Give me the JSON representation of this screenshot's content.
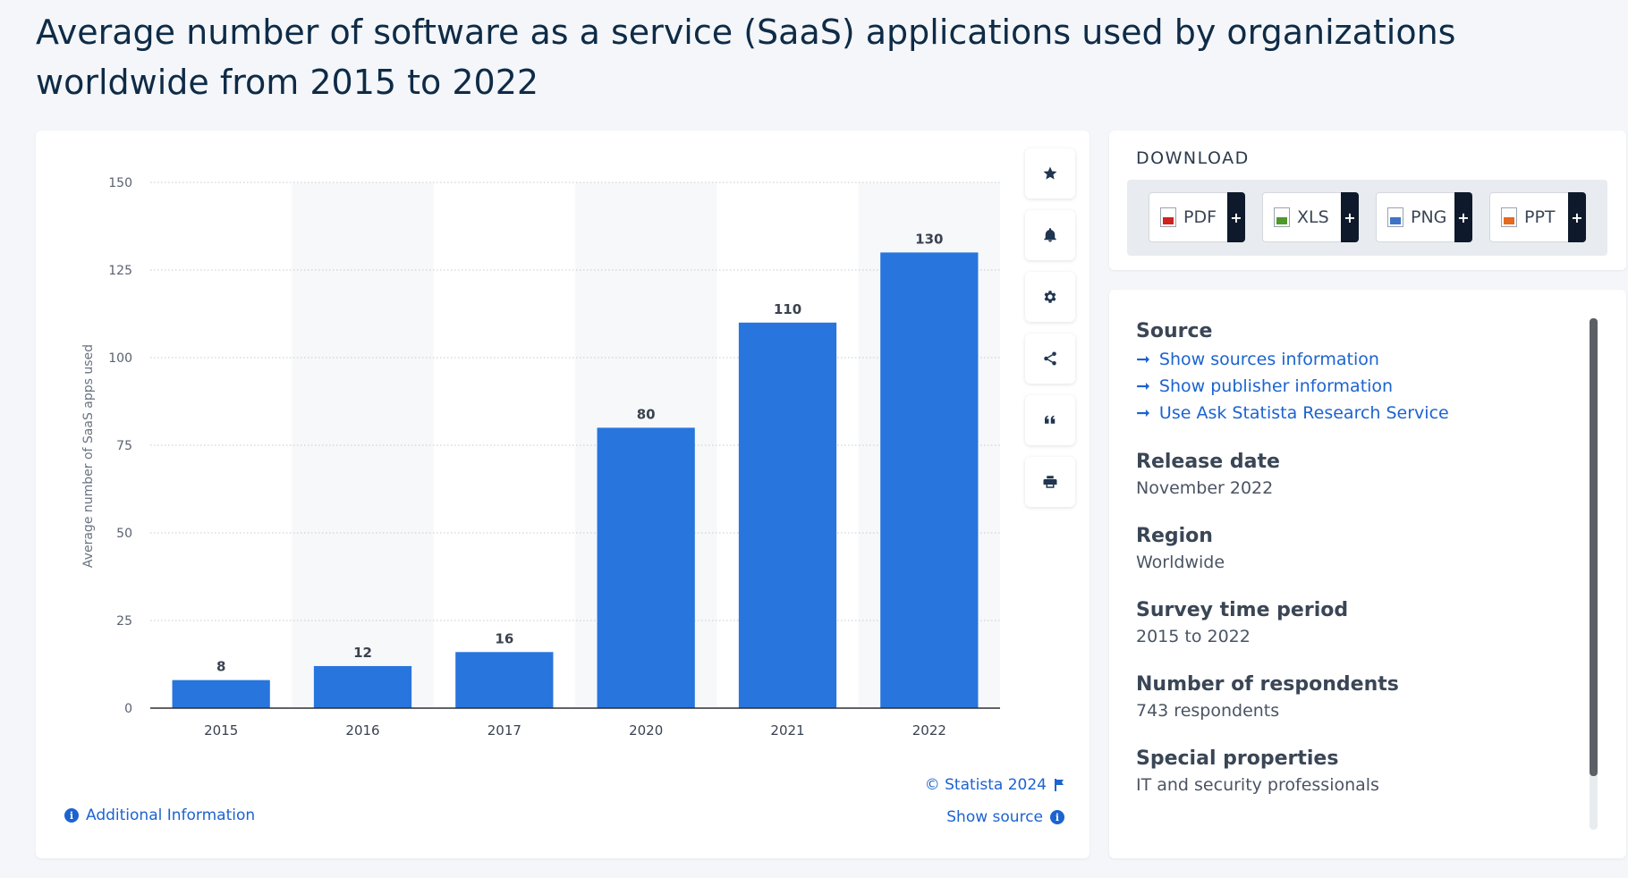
{
  "page_title": "Average number of software as a service (SaaS) applications used by organizations worldwide from 2015 to 2022",
  "colors": {
    "bar": "#2875dd",
    "accent": "#1c63d0",
    "band": "#f7f8fa"
  },
  "chart_data": {
    "type": "bar",
    "categories": [
      "2015",
      "2016",
      "2017",
      "2020",
      "2021",
      "2022"
    ],
    "values": [
      8,
      12,
      16,
      80,
      110,
      130
    ],
    "value_labels": [
      "8",
      "12",
      "16",
      "80",
      "110",
      "130"
    ],
    "xlabel": "",
    "ylabel": "Average number of SaaS apps used",
    "ylim": [
      0,
      150
    ],
    "yticks": [
      0,
      25,
      50,
      75,
      100,
      125,
      150
    ],
    "ytick_labels": [
      "0",
      "25",
      "50",
      "75",
      "100",
      "125",
      "150"
    ],
    "grid": "horizontal-dotted",
    "legend": "none"
  },
  "toolbar": {
    "icons": [
      "star-icon",
      "bell-icon",
      "gear-icon",
      "share-icon",
      "quote-icon",
      "print-icon"
    ]
  },
  "footer": {
    "copyright": "© Statista 2024",
    "show_source": "Show source",
    "additional_info": "Additional Information"
  },
  "download": {
    "title": "DOWNLOAD",
    "buttons": [
      {
        "label": "PDF",
        "plus": "+",
        "color": "#d0221f"
      },
      {
        "label": "XLS",
        "plus": "+",
        "color": "#4d9a2a"
      },
      {
        "label": "PNG",
        "plus": "+",
        "color": "#3f73c5"
      },
      {
        "label": "PPT",
        "plus": "+",
        "color": "#e46b1f"
      }
    ]
  },
  "info": {
    "source_heading": "Source",
    "source_links": [
      "Show sources information",
      "Show publisher information",
      "Use Ask Statista Research Service"
    ],
    "release_date_heading": "Release date",
    "release_date": "November 2022",
    "region_heading": "Region",
    "region": "Worldwide",
    "survey_period_heading": "Survey time period",
    "survey_period": "2015 to 2022",
    "respondents_heading": "Number of respondents",
    "respondents": "743 respondents",
    "special_heading": "Special properties",
    "special": "IT and security professionals"
  }
}
